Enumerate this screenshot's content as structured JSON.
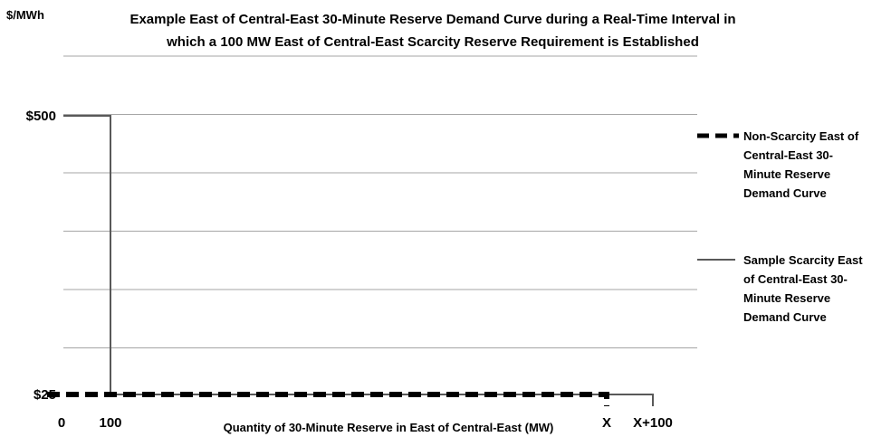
{
  "chart_data": {
    "type": "line",
    "title_lines": [
      "Example East of Central-East 30-Minute Reserve Demand Curve during a Real-Time Interval in",
      "which a 100 MW East of Central-East Scarcity Reserve Requirement is Established"
    ],
    "ylabel": "$/MWh",
    "xlabel": "Quantity of 30-Minute Reserve in East of Central-East (MW)",
    "y_tick_labels": [
      {
        "label": "$500",
        "value": 500
      },
      {
        "label": "$25",
        "value": 25
      }
    ],
    "x_tick_labels": [
      {
        "label": "0",
        "value": 0
      },
      {
        "label": "100",
        "value": 100
      },
      {
        "label": "X",
        "value": 1200
      },
      {
        "label": "X+100",
        "value": 1300
      }
    ],
    "grid": true,
    "y_gridlines": 6,
    "legend_position": "right",
    "series": [
      {
        "name": "Non-Scarcity East of Central-East 30-Minute Reserve Demand Curve",
        "legend_lines": [
          "Non-Scarcity East of",
          "Central-East 30-",
          "Minute Reserve",
          "Demand Curve"
        ],
        "style": "dashed",
        "color": "#000000",
        "points": [
          {
            "x": 0,
            "y": 25
          },
          {
            "x": 1200,
            "y": 25
          },
          {
            "x": 1200,
            "y": 0
          }
        ]
      },
      {
        "name": "Sample Scarcity East of Central-East 30-Minute Reserve Demand Curve",
        "legend_lines": [
          "Sample Scarcity East",
          "of Central-East 30-",
          "Minute Reserve",
          "Demand Curve"
        ],
        "style": "solid",
        "color": "#595959",
        "points": [
          {
            "x": 0,
            "y": 500
          },
          {
            "x": 100,
            "y": 500
          },
          {
            "x": 100,
            "y": 25
          },
          {
            "x": 1300,
            "y": 25
          },
          {
            "x": 1300,
            "y": 0
          }
        ]
      }
    ]
  }
}
